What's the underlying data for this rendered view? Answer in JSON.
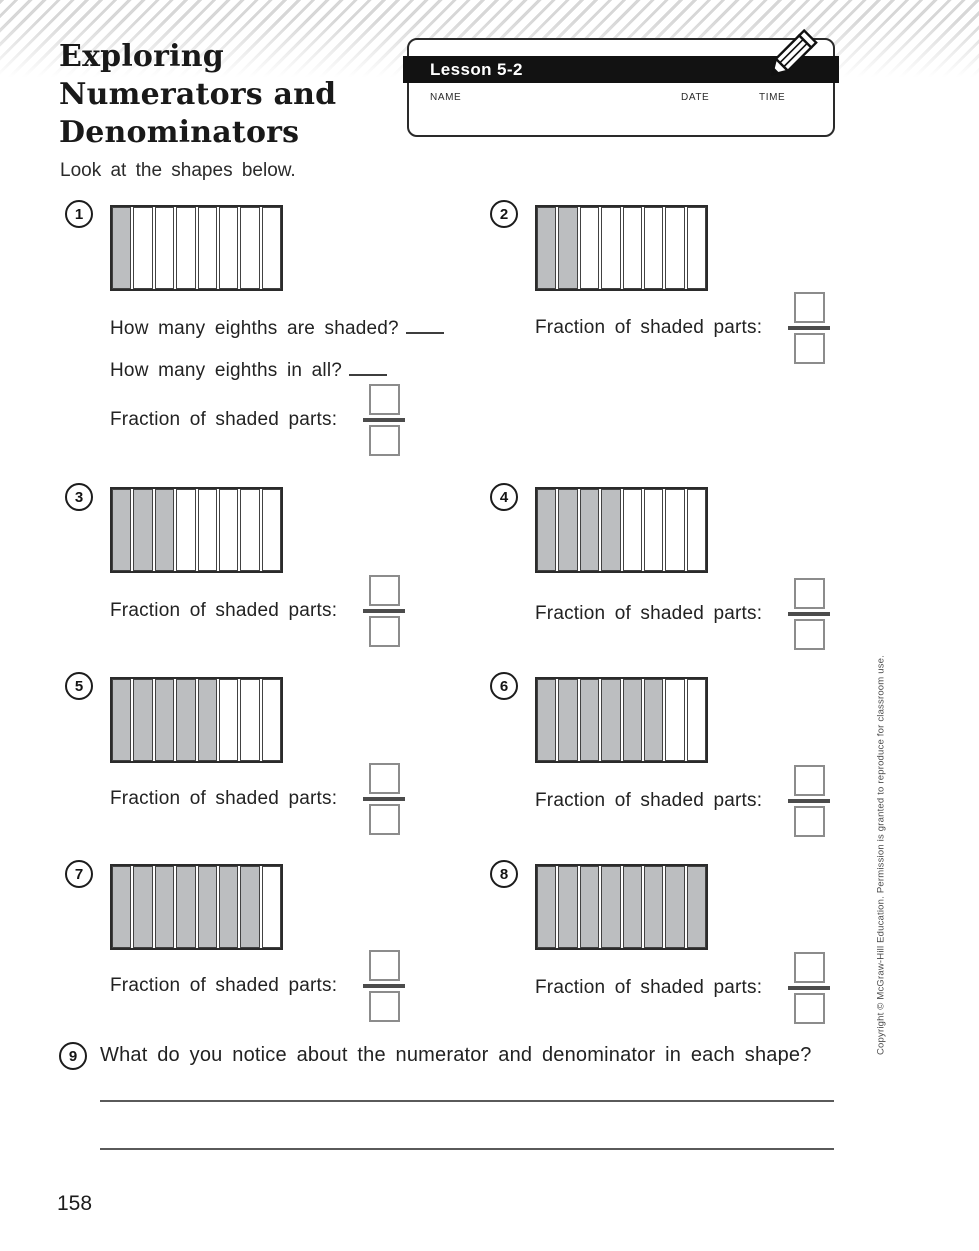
{
  "page": {
    "title_lines": [
      "Exploring",
      "Numerators and",
      "Denominators"
    ],
    "intro": "Look at the shapes below.",
    "page_number": "158",
    "copyright": "Copyright © McGraw-Hill Education. Permission is granted to reproduce for classroom use."
  },
  "lesson_box": {
    "lesson_label": "Lesson 5-2",
    "name_label": "NAME",
    "date_label": "DATE",
    "time_label": "TIME"
  },
  "labels": {
    "fraction_prompt": "Fraction of shaded parts:",
    "q_shaded": "How many eighths are shaded?",
    "q_total": "How many eighths in all?"
  },
  "problems": [
    {
      "number": "1",
      "total_parts": 8,
      "shaded_parts": 1
    },
    {
      "number": "2",
      "total_parts": 8,
      "shaded_parts": 2
    },
    {
      "number": "3",
      "total_parts": 8,
      "shaded_parts": 3
    },
    {
      "number": "4",
      "total_parts": 8,
      "shaded_parts": 4
    },
    {
      "number": "5",
      "total_parts": 8,
      "shaded_parts": 5
    },
    {
      "number": "6",
      "total_parts": 8,
      "shaded_parts": 6
    },
    {
      "number": "7",
      "total_parts": 8,
      "shaded_parts": 7
    },
    {
      "number": "8",
      "total_parts": 8,
      "shaded_parts": 8
    }
  ],
  "question9": {
    "number": "9",
    "text": "What do you notice about the numerator and denominator in each shape?"
  },
  "colors": {
    "shaded_fill": "#bcbec0",
    "header_bar": "#121212",
    "stripe_gray": "#d7d7d7"
  }
}
